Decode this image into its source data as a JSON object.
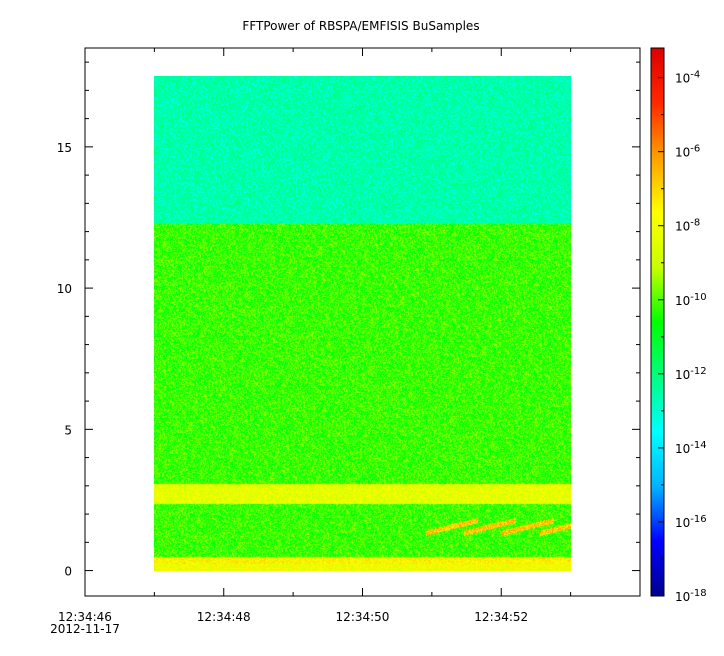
{
  "chart_data": {
    "type": "heatmap",
    "title": "FFTPower of RBSPA/EMFISIS  BuSamples",
    "xlabel": "",
    "ylabel": "",
    "x_ticks": [
      {
        "label": "12:34:46",
        "sublabel": "2012-11-17",
        "t": 0
      },
      {
        "label": "12:34:48",
        "t": 2
      },
      {
        "label": "12:34:50",
        "t": 4
      },
      {
        "label": "12:34:52",
        "t": 6
      }
    ],
    "x_minor_ticks": [
      1,
      3,
      5,
      7
    ],
    "xlim_seconds": [
      0,
      8
    ],
    "data_extent_seconds": [
      1.0,
      7.0
    ],
    "ylim": [
      -0.9,
      18.5
    ],
    "y_ticks": [
      0,
      5,
      10,
      15
    ],
    "data_extent_y": [
      0,
      17.5
    ],
    "colorbar": {
      "scale": "log",
      "range_exponents": [
        -18,
        -3.2
      ],
      "tick_exponents": [
        -18,
        -16,
        -14,
        -12,
        -10,
        -8,
        -6,
        -4
      ],
      "tick_base": "10",
      "colors": [
        "#00008c",
        "#0000ff",
        "#00b4ff",
        "#00ffff",
        "#00ff80",
        "#00ff00",
        "#c8ff00",
        "#ffff00",
        "#ffa000",
        "#ff2800",
        "#dc0000"
      ]
    },
    "regions": [
      {
        "y_range": [
          12.3,
          17.5
        ],
        "level_exponent": -12.6,
        "description_color": "#1ee88a"
      },
      {
        "y_range": [
          0,
          12.3
        ],
        "level_exponent": -10.2,
        "description_color": "#3ed631"
      },
      {
        "y_range": [
          2.4,
          3.1
        ],
        "level_exponent": -8.3,
        "description_color": "#ffdd22"
      },
      {
        "y_range": [
          0,
          0.5
        ],
        "level_exponent": -7.6,
        "description_color": "#ffb020"
      }
    ]
  }
}
